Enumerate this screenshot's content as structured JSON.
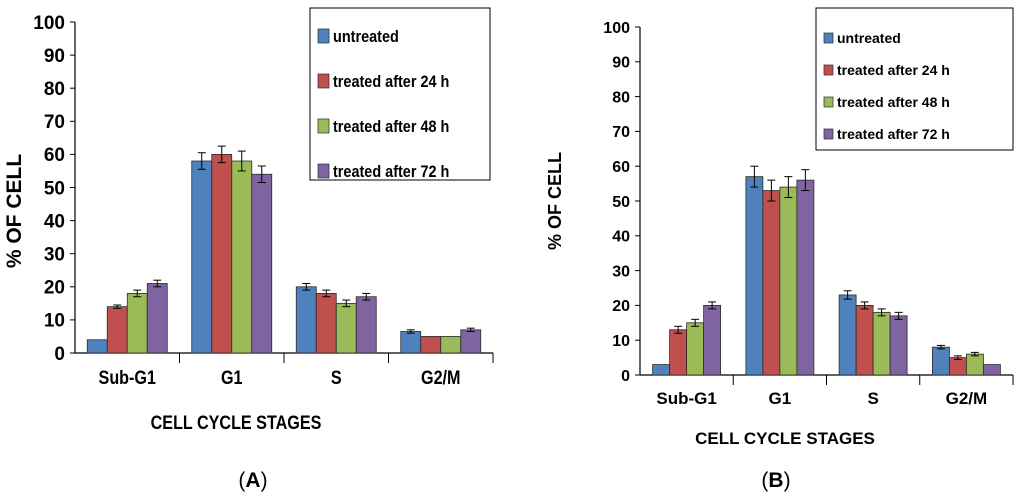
{
  "chart_data": [
    {
      "type": "bar",
      "panel_label": "A",
      "title": "",
      "xlabel": "CELL CYCLE STAGES",
      "ylabel": "% OF CELL",
      "ylim": [
        0,
        100
      ],
      "yticks": [
        0,
        10,
        20,
        30,
        40,
        50,
        60,
        70,
        80,
        90,
        100
      ],
      "grid": false,
      "legend_position": "top-right",
      "categories": [
        "Sub-G1",
        "G1",
        "S",
        "G2/M"
      ],
      "series": [
        {
          "name": "untreated",
          "color": "#4F81BD",
          "values": [
            4,
            58,
            20,
            6.5
          ],
          "errors": [
            0,
            2.5,
            1,
            0.5
          ]
        },
        {
          "name": "treated after 24 h",
          "color": "#C0504D",
          "values": [
            14,
            60,
            18,
            5
          ],
          "errors": [
            0.5,
            2.5,
            1,
            0
          ]
        },
        {
          "name": "treated after 48 h",
          "color": "#9BBB59",
          "values": [
            18,
            58,
            15,
            5
          ],
          "errors": [
            1,
            3,
            1,
            0
          ]
        },
        {
          "name": "treated after 72 h",
          "color": "#8064A2",
          "values": [
            21,
            54,
            17,
            7
          ],
          "errors": [
            1,
            2.5,
            1,
            0.5
          ]
        }
      ]
    },
    {
      "type": "bar",
      "panel_label": "B",
      "title": "",
      "xlabel": "CELL CYCLE STAGES",
      "ylabel": "% OF CELL",
      "ylim": [
        0,
        100
      ],
      "yticks": [
        0,
        10,
        20,
        30,
        40,
        50,
        60,
        70,
        80,
        90,
        100
      ],
      "grid": false,
      "legend_position": "top-right",
      "categories": [
        "Sub-G1",
        "G1",
        "S",
        "G2/M"
      ],
      "series": [
        {
          "name": "untreated",
          "color": "#4F81BD",
          "values": [
            3,
            57,
            23,
            8
          ],
          "errors": [
            0,
            3,
            1.2,
            0.5
          ]
        },
        {
          "name": "treated after 24 h",
          "color": "#C0504D",
          "values": [
            13,
            53,
            20,
            5
          ],
          "errors": [
            1,
            3,
            1,
            0.5
          ]
        },
        {
          "name": "treated after 48 h",
          "color": "#9BBB59",
          "values": [
            15,
            54,
            18,
            6
          ],
          "errors": [
            1,
            3,
            1,
            0.5
          ]
        },
        {
          "name": "treated after 72 h",
          "color": "#8064A2",
          "values": [
            20,
            56,
            17,
            3
          ],
          "errors": [
            1,
            3,
            1,
            0
          ]
        }
      ]
    }
  ]
}
